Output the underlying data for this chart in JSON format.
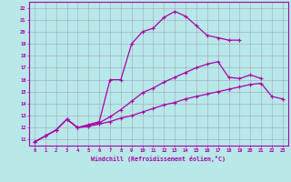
{
  "xlabel": "Windchill (Refroidissement éolien,°C)",
  "bg_color": "#b8e8e8",
  "line_color": "#aa00aa",
  "grid_color": "#9999bb",
  "xlim": [
    -0.5,
    23.5
  ],
  "ylim": [
    10.5,
    22.5
  ],
  "xticks": [
    0,
    1,
    2,
    3,
    4,
    5,
    6,
    7,
    8,
    9,
    10,
    11,
    12,
    13,
    14,
    15,
    16,
    17,
    18,
    19,
    20,
    21,
    22,
    23
  ],
  "yticks": [
    11,
    12,
    13,
    14,
    15,
    16,
    17,
    18,
    19,
    20,
    21,
    22
  ],
  "lines": [
    {
      "x": [
        0,
        1,
        2,
        3,
        4,
        5,
        6,
        7,
        8,
        9,
        10,
        11,
        12,
        13,
        14,
        15,
        16,
        17,
        18,
        19
      ],
      "y": [
        10.8,
        11.3,
        11.8,
        12.7,
        12.0,
        12.25,
        12.5,
        16.0,
        16.0,
        19.0,
        20.0,
        20.3,
        21.2,
        21.7,
        21.3,
        20.5,
        19.7,
        19.5,
        19.3,
        19.3
      ]
    },
    {
      "x": [
        0,
        1,
        2,
        3,
        4,
        5,
        6,
        7,
        8,
        9,
        10,
        11,
        12,
        13,
        14,
        15,
        16,
        17,
        18,
        19,
        20,
        21
      ],
      "y": [
        10.8,
        11.3,
        11.8,
        12.7,
        12.0,
        12.2,
        12.4,
        12.9,
        13.5,
        14.2,
        14.9,
        15.3,
        15.8,
        16.2,
        16.6,
        17.0,
        17.3,
        17.5,
        16.2,
        16.1,
        16.4,
        16.1
      ]
    },
    {
      "x": [
        0,
        1,
        2,
        3,
        4,
        5,
        6,
        7,
        8,
        9,
        10,
        11,
        12,
        13,
        14,
        15,
        16,
        17,
        18,
        19,
        20,
        21,
        22,
        23
      ],
      "y": [
        10.8,
        11.3,
        11.8,
        12.7,
        12.0,
        12.1,
        12.3,
        12.5,
        12.8,
        13.0,
        13.3,
        13.6,
        13.9,
        14.1,
        14.4,
        14.6,
        14.8,
        15.0,
        15.2,
        15.4,
        15.6,
        15.7,
        14.6,
        14.4
      ]
    }
  ]
}
